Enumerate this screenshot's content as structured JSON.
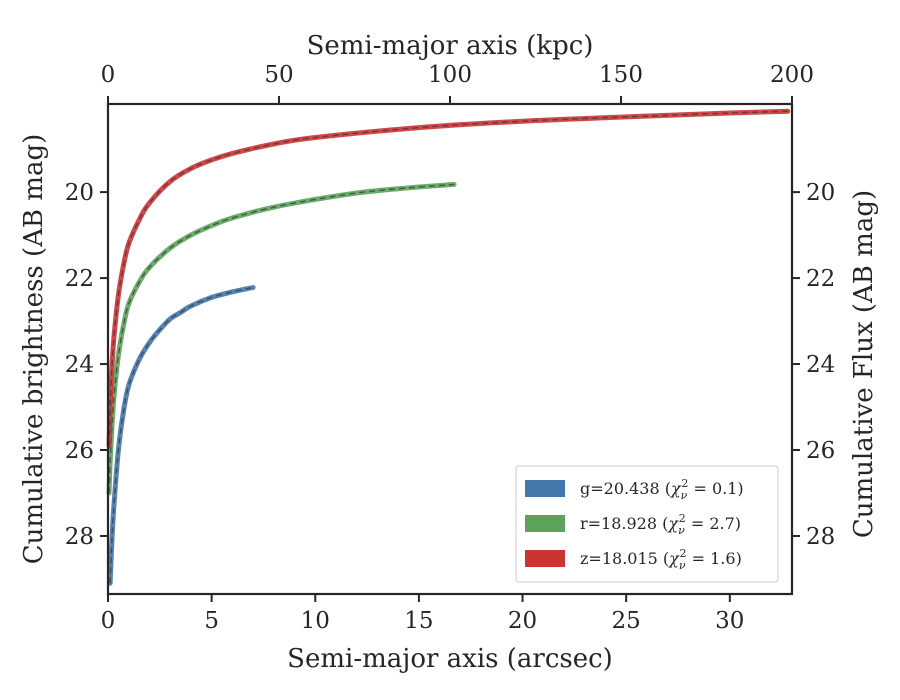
{
  "chart_data": {
    "type": "line",
    "xlabel": "Semi-major axis (arcsec)",
    "x2label": "Semi-major axis (kpc)",
    "ylabel": "Cumulative brightness (AB mag)",
    "y2label": "Cumulative Flux (AB mag)",
    "xlim": [
      0,
      33
    ],
    "x2lim": [
      0,
      200
    ],
    "ylim": [
      29.35,
      17.95
    ],
    "y_inverted": true,
    "xticks": [
      0,
      5,
      10,
      15,
      20,
      25,
      30
    ],
    "x2ticks": [
      0,
      50,
      100,
      150,
      200
    ],
    "yticks": [
      20,
      22,
      24,
      26,
      28
    ],
    "grid": false,
    "legend_position": "lower right",
    "series": [
      {
        "name": "g=20.438",
        "chi2": "0.1",
        "color": "#4477aa",
        "x": [
          0.1,
          0.2,
          0.3,
          0.5,
          0.75,
          1.0,
          1.5,
          2.0,
          2.5,
          3.0,
          3.5,
          4.0,
          5.0,
          6.0,
          7.0
        ],
        "y": [
          29.1,
          28.0,
          27.2,
          26.0,
          25.1,
          24.5,
          23.9,
          23.5,
          23.2,
          22.95,
          22.8,
          22.65,
          22.45,
          22.32,
          22.22
        ]
      },
      {
        "name": "r=18.928",
        "chi2": "2.7",
        "color": "#5ba35b",
        "x": [
          0.05,
          0.1,
          0.2,
          0.3,
          0.5,
          0.75,
          1.0,
          1.5,
          2.0,
          3.0,
          4.0,
          5.0,
          6.0,
          8.0,
          10.0,
          12.0,
          14.0,
          16.7
        ],
        "y": [
          27.0,
          26.3,
          25.4,
          24.7,
          23.8,
          23.1,
          22.6,
          22.1,
          21.75,
          21.3,
          21.0,
          20.78,
          20.6,
          20.35,
          20.17,
          20.02,
          19.92,
          19.82
        ]
      },
      {
        "name": "z=18.015",
        "chi2": "1.6",
        "color": "#cc3333",
        "x": [
          0.05,
          0.1,
          0.2,
          0.3,
          0.5,
          0.75,
          1.0,
          1.5,
          2.0,
          3.0,
          4.0,
          5.0,
          6.0,
          8.0,
          10.0,
          15.0,
          20.0,
          25.0,
          30.0,
          32.8
        ],
        "y": [
          25.9,
          25.0,
          24.0,
          23.3,
          22.4,
          21.7,
          21.2,
          20.65,
          20.25,
          19.75,
          19.45,
          19.25,
          19.1,
          18.88,
          18.73,
          18.5,
          18.35,
          18.25,
          18.16,
          18.12
        ]
      }
    ]
  }
}
